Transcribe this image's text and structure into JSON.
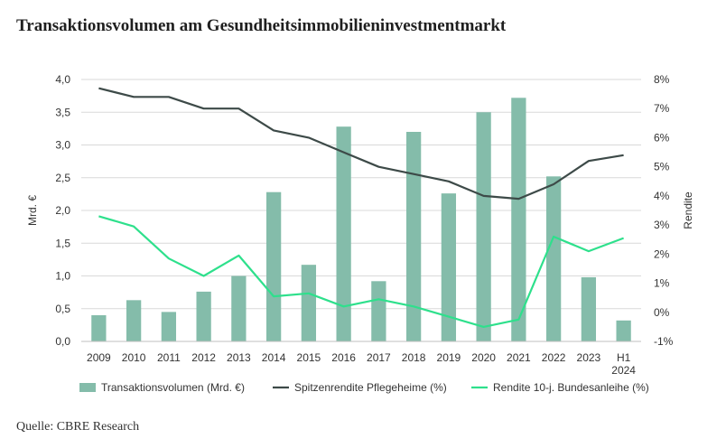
{
  "header": {
    "title": "Transaktionsvolumen am Gesundheitsimmobilieninvestmentmarkt"
  },
  "footer": {
    "source": "Quelle: CBRE Research"
  },
  "chart_data": {
    "type": "bar",
    "categories": [
      "2009",
      "2010",
      "2011",
      "2012",
      "2013",
      "2014",
      "2015",
      "2016",
      "2017",
      "2018",
      "2019",
      "2020",
      "2021",
      "2022",
      "2023",
      "H1 2024"
    ],
    "ylabel": "Mrd. €",
    "y2label": "Rendite",
    "ylim": [
      0,
      4
    ],
    "y_ticks": [
      "0,0",
      "0,5",
      "1,0",
      "1,5",
      "2,0",
      "2,5",
      "3,0",
      "3,5",
      "4,0"
    ],
    "y2lim": [
      -1,
      8
    ],
    "y2_ticks": [
      "-1%",
      "0%",
      "1%",
      "2%",
      "3%",
      "4%",
      "5%",
      "6%",
      "7%",
      "8%"
    ],
    "grid": true,
    "legend_position": "bottom",
    "series": [
      {
        "name": "Transaktionsvolumen (Mrd. €)",
        "type": "bar",
        "axis": "left",
        "color": "#84bcaa",
        "values": [
          0.4,
          0.63,
          0.45,
          0.76,
          1.0,
          2.28,
          1.17,
          3.28,
          0.92,
          3.2,
          2.26,
          3.5,
          3.72,
          2.52,
          0.98,
          0.32
        ]
      },
      {
        "name": "Spitzenrendite Pflegeheime (%)",
        "type": "line",
        "axis": "right",
        "color": "#3d4a48",
        "values": [
          7.7,
          7.4,
          7.4,
          7.0,
          7.0,
          6.25,
          6.0,
          5.5,
          5.0,
          4.75,
          4.5,
          4.0,
          3.9,
          4.4,
          5.2,
          5.4
        ]
      },
      {
        "name": "Rendite 10-j. Bundesanleihe (%)",
        "type": "line",
        "axis": "right",
        "color": "#2ee08c",
        "values": [
          3.3,
          2.95,
          1.85,
          1.25,
          1.95,
          0.55,
          0.65,
          0.2,
          0.45,
          0.2,
          -0.15,
          -0.5,
          -0.25,
          2.6,
          2.1,
          2.55
        ]
      }
    ]
  }
}
